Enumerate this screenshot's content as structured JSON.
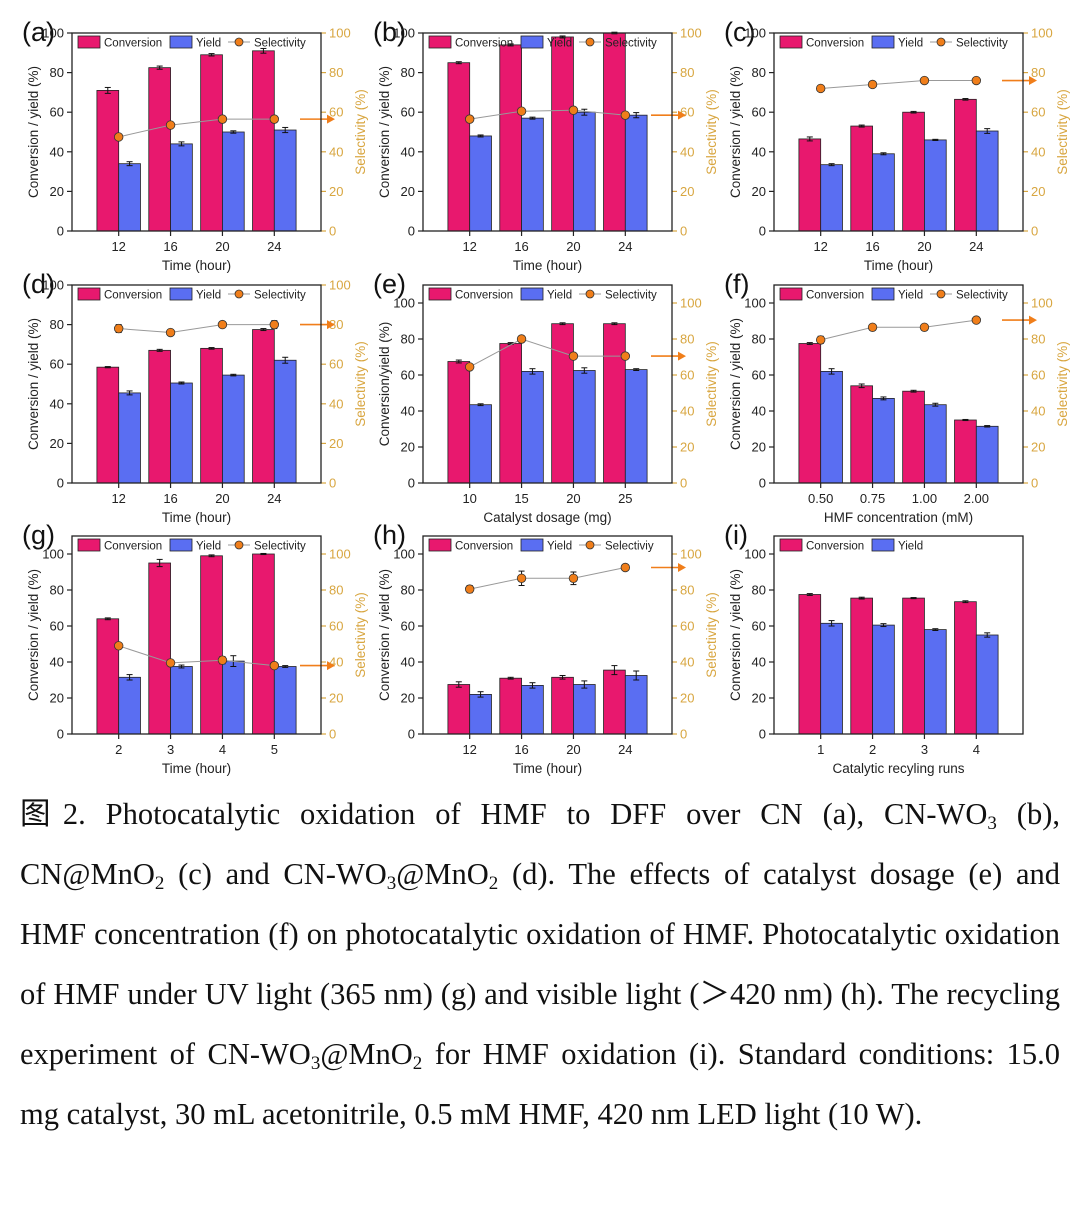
{
  "colors": {
    "conversion": "#e8186e",
    "yield": "#5a6ef2",
    "selectivity": "#f07e1a",
    "sel_axis": "#d8a640"
  },
  "chart_data": [
    {
      "id": "a",
      "panel_label": "(a)",
      "type": "bar",
      "categories": [
        "12",
        "16",
        "20",
        "24"
      ],
      "xlabel": "Time (hour)",
      "ylabel": "Conversion / yield (%)",
      "ylabel_right": "Selectivity (%)",
      "ylim": [
        0,
        100
      ],
      "ylim_right": [
        0,
        100
      ],
      "series": [
        {
          "name": "Conversion",
          "values": [
            71,
            82.5,
            89,
            91
          ],
          "errors": [
            1.5,
            0.8,
            0.6,
            1.2
          ]
        },
        {
          "name": "Yield",
          "values": [
            34,
            44,
            50,
            51
          ],
          "errors": [
            1,
            1,
            0.6,
            1.3
          ]
        },
        {
          "name": "Selectivity",
          "values": [
            47.5,
            53.5,
            56.5,
            56.5
          ],
          "errors": [
            0,
            0,
            0,
            0
          ]
        }
      ],
      "legend": [
        "Conversion",
        "Yield",
        "Selectivity"
      ]
    },
    {
      "id": "b",
      "panel_label": "(b)",
      "type": "bar",
      "categories": [
        "12",
        "16",
        "20",
        "24"
      ],
      "xlabel": "Time (hour)",
      "ylabel": "Conversion / yield (%)",
      "ylabel_right": "Selectivity (%)",
      "ylim": [
        0,
        100
      ],
      "ylim_right": [
        0,
        100
      ],
      "series": [
        {
          "name": "Conversion",
          "values": [
            85,
            94,
            98,
            100
          ],
          "errors": [
            0.5,
            0.5,
            0.5,
            0.4
          ]
        },
        {
          "name": "Yield",
          "values": [
            48,
            57,
            60,
            58.5
          ],
          "errors": [
            0.5,
            0.5,
            1.5,
            1.3
          ]
        },
        {
          "name": "Selectivity",
          "values": [
            56.5,
            60.5,
            61,
            58.5
          ],
          "errors": [
            0,
            0,
            0,
            0
          ]
        }
      ],
      "legend": [
        "Conversion",
        "Yield",
        "Selectivity"
      ]
    },
    {
      "id": "c",
      "panel_label": "(c)",
      "type": "bar",
      "categories": [
        "12",
        "16",
        "20",
        "24"
      ],
      "xlabel": "Time (hour)",
      "ylabel": "Conversion / yield (%)",
      "ylabel_right": "Selectivity (%)",
      "ylim": [
        0,
        100
      ],
      "ylim_right": [
        0,
        100
      ],
      "series": [
        {
          "name": "Conversion",
          "values": [
            46.5,
            53,
            60,
            66.5
          ],
          "errors": [
            1,
            0.5,
            0.4,
            0.4
          ]
        },
        {
          "name": "Yield",
          "values": [
            33.5,
            39,
            46,
            50.5
          ],
          "errors": [
            0.5,
            0.5,
            0.3,
            1.2
          ]
        },
        {
          "name": "Selectivity",
          "values": [
            72,
            74,
            76,
            76
          ],
          "errors": [
            0,
            0,
            0,
            0
          ]
        }
      ],
      "legend": [
        "Conversion",
        "Yield",
        "Selectivity"
      ]
    },
    {
      "id": "d",
      "panel_label": "(d)",
      "type": "bar",
      "categories": [
        "12",
        "16",
        "20",
        "24"
      ],
      "xlabel": "Time (hour)",
      "ylabel": "Conversion / yield (%)",
      "ylabel_right": "Selectivity (%)",
      "ylim": [
        0,
        100
      ],
      "ylim_right": [
        0,
        100
      ],
      "series": [
        {
          "name": "Conversion",
          "values": [
            58.5,
            67,
            68,
            77.5
          ],
          "errors": [
            0.3,
            0.5,
            0.4,
            0.5
          ]
        },
        {
          "name": "Yield",
          "values": [
            45.5,
            50.5,
            54.5,
            62
          ],
          "errors": [
            1,
            0.5,
            0.4,
            1.5
          ]
        },
        {
          "name": "Selectivity",
          "values": [
            78,
            76,
            80,
            80
          ],
          "errors": [
            2,
            1.5,
            1.5,
            2
          ]
        }
      ],
      "legend": [
        "Conversion",
        "Yield",
        "Selectivity"
      ]
    },
    {
      "id": "e",
      "panel_label": "(e)",
      "type": "bar",
      "categories": [
        "10",
        "15",
        "20",
        "25"
      ],
      "xlabel": "Catalyst dosage (mg)",
      "ylabel": "Conversion/yield (%)",
      "ylabel_right": "Selectivity (%)",
      "ylim": [
        0,
        110
      ],
      "ylim_right": [
        0,
        110
      ],
      "series": [
        {
          "name": "Conversion",
          "values": [
            67.5,
            77.5,
            88.5,
            88.5
          ],
          "errors": [
            0.8,
            0.5,
            0.5,
            0.5
          ]
        },
        {
          "name": "Yield",
          "values": [
            43.5,
            62,
            62.5,
            63
          ],
          "errors": [
            0.5,
            1.5,
            1.5,
            0.5
          ]
        },
        {
          "name": "Selectivity",
          "values": [
            64.5,
            80,
            70.5,
            70.5
          ],
          "errors": [
            1.5,
            1.5,
            1,
            1
          ]
        }
      ],
      "legend": [
        "Conversion",
        "Yield",
        "Selectivity"
      ]
    },
    {
      "id": "f",
      "panel_label": "(f)",
      "type": "bar",
      "categories": [
        "0.50",
        "0.75",
        "1.00",
        "2.00"
      ],
      "xlabel": "HMF concentration (mM)",
      "ylabel": "Conversion / yield (%)",
      "ylabel_right": "Selectivity (%)",
      "ylim": [
        0,
        110
      ],
      "ylim_right": [
        0,
        110
      ],
      "series": [
        {
          "name": "Conversion",
          "values": [
            77.5,
            54,
            51,
            35
          ],
          "errors": [
            0.5,
            1,
            0.5,
            0.3
          ]
        },
        {
          "name": "Yield",
          "values": [
            62,
            47,
            43.5,
            31.5
          ],
          "errors": [
            1.5,
            0.8,
            0.8,
            0.4
          ]
        },
        {
          "name": "Selectivity",
          "values": [
            79.5,
            86.5,
            86.5,
            90.5
          ],
          "errors": [
            2,
            1,
            1,
            1
          ]
        }
      ],
      "legend": [
        "Conversion",
        "Yield",
        "Selectivity"
      ]
    },
    {
      "id": "g",
      "panel_label": "(g)",
      "type": "bar",
      "categories": [
        "2",
        "3",
        "4",
        "5"
      ],
      "xlabel": "Time (hour)",
      "ylabel": "Conversion / yield (%)",
      "ylabel_right": "Selectivity (%)",
      "ylim": [
        0,
        110
      ],
      "ylim_right": [
        0,
        110
      ],
      "series": [
        {
          "name": "Conversion",
          "values": [
            64,
            95,
            99,
            100
          ],
          "errors": [
            0.5,
            2,
            0.5,
            0.3
          ]
        },
        {
          "name": "Yield",
          "values": [
            31.5,
            37.5,
            40.5,
            37.5
          ],
          "errors": [
            1.5,
            0.8,
            3,
            0.5
          ]
        },
        {
          "name": "Selectivity",
          "values": [
            49,
            39.5,
            41,
            38
          ],
          "errors": [
            1,
            1,
            2,
            1
          ]
        }
      ],
      "legend": [
        "Conversion",
        "Yield",
        "Selectivity"
      ]
    },
    {
      "id": "h",
      "panel_label": "(h)",
      "type": "bar",
      "categories": [
        "12",
        "16",
        "20",
        "24"
      ],
      "xlabel": "Time (hour)",
      "ylabel": "Conversion / yield (%)",
      "ylabel_right": "Selectivity (%)",
      "ylim": [
        0,
        110
      ],
      "ylim_right": [
        0,
        110
      ],
      "series": [
        {
          "name": "Conversion",
          "values": [
            27.5,
            31,
            31.5,
            35.5
          ],
          "errors": [
            1.5,
            0.5,
            1,
            2.5
          ]
        },
        {
          "name": "Yield",
          "values": [
            22,
            27,
            27.5,
            32.5
          ],
          "errors": [
            1.5,
            1.5,
            2,
            2.5
          ]
        },
        {
          "name": "Selectivity",
          "values": [
            80.5,
            86.5,
            86.5,
            92.5
          ],
          "errors": [
            2,
            4,
            3.5,
            1.5
          ]
        }
      ],
      "legend": [
        "Conversion",
        "Yield",
        "Selectiviy"
      ]
    },
    {
      "id": "i",
      "panel_label": "(i)",
      "type": "bar",
      "categories": [
        "1",
        "2",
        "3",
        "4"
      ],
      "xlabel": "Catalytic recyling runs",
      "ylabel": "Conversion / yield (%)",
      "ylim": [
        0,
        110
      ],
      "series": [
        {
          "name": "Conversion",
          "values": [
            77.5,
            75.5,
            75.5,
            73.5
          ],
          "errors": [
            0.5,
            0.5,
            0.3,
            0.5
          ]
        },
        {
          "name": "Yield",
          "values": [
            61.5,
            60.5,
            58,
            55
          ],
          "errors": [
            1.5,
            0.8,
            0.5,
            1.2
          ]
        }
      ],
      "legend": [
        "Conversion",
        "Yield"
      ]
    }
  ],
  "caption": {
    "p1": "图2. Photocatalytic oxidation of HMF to DFF over CN (a), CN-WO",
    "s1": "3",
    "p2": " (b), CN@MnO",
    "s2": "2",
    "p3": " (c) and CN-WO",
    "s3": "3",
    "p4": "@MnO",
    "s4": "2",
    "p5": " (d). The effects of catalyst dosage (e) and HMF concentration (f) on photocatalytic oxidation of HMF. Photocatalytic oxidation of HMF under UV light (365 nm) (g) and visible light (＞420 nm) (h). The recycling experiment of CN-WO",
    "s5": "3",
    "p6": "@MnO",
    "s6": "2",
    "p7": " for HMF oxidation (i). Standard conditions: 15.0 mg catalyst, 30 mL acetonitrile, 0.5 mM HMF, 420 nm LED light (10 W)."
  }
}
